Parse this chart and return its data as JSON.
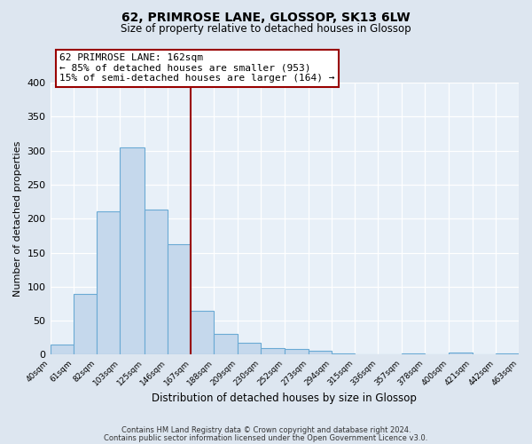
{
  "title": "62, PRIMROSE LANE, GLOSSOP, SK13 6LW",
  "subtitle": "Size of property relative to detached houses in Glossop",
  "xlabel": "Distribution of detached houses by size in Glossop",
  "ylabel": "Number of detached properties",
  "bin_edges": [
    40,
    61,
    82,
    103,
    125,
    146,
    167,
    188,
    209,
    230,
    252,
    273,
    294,
    315,
    336,
    357,
    378,
    400,
    421,
    442,
    463
  ],
  "bin_counts": [
    15,
    89,
    211,
    305,
    214,
    162,
    65,
    31,
    18,
    10,
    8,
    6,
    2,
    0,
    0,
    2,
    0,
    3,
    0,
    2
  ],
  "bar_facecolor": "#c5d8ec",
  "bar_edgecolor": "#6aaad4",
  "vline_x": 167,
  "vline_color": "#990000",
  "annotation_title": "62 PRIMROSE LANE: 162sqm",
  "annotation_line1": "← 85% of detached houses are smaller (953)",
  "annotation_line2": "15% of semi-detached houses are larger (164) →",
  "annotation_box_edgecolor": "#990000",
  "annotation_box_facecolor": "white",
  "ylim": [
    0,
    400
  ],
  "yticks": [
    0,
    50,
    100,
    150,
    200,
    250,
    300,
    350,
    400
  ],
  "tick_labels": [
    "40sqm",
    "61sqm",
    "82sqm",
    "103sqm",
    "125sqm",
    "146sqm",
    "167sqm",
    "188sqm",
    "209sqm",
    "230sqm",
    "252sqm",
    "273sqm",
    "294sqm",
    "315sqm",
    "336sqm",
    "357sqm",
    "378sqm",
    "400sqm",
    "421sqm",
    "442sqm",
    "463sqm"
  ],
  "footnote1": "Contains HM Land Registry data © Crown copyright and database right 2024.",
  "footnote2": "Contains public sector information licensed under the Open Government Licence v3.0.",
  "bg_color": "#dde6f0",
  "plot_bg_color": "#e8f0f8",
  "grid_color": "#ffffff"
}
